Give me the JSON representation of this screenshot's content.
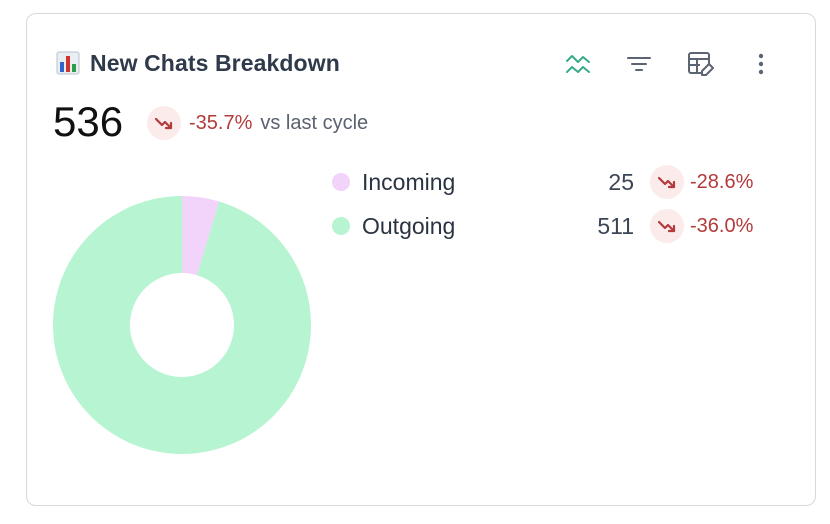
{
  "header": {
    "title": "New Chats Breakdown",
    "icons": [
      "bar-chart-emoji-icon",
      "trend-compare-icon",
      "filter-icon",
      "edit-table-icon",
      "more-vertical-icon"
    ]
  },
  "summary": {
    "total": "536",
    "delta": "-35.7%",
    "delta_suffix": "vs last cycle"
  },
  "legend": [
    {
      "label": "Incoming",
      "count": "25",
      "delta": "-28.6%",
      "color": "#f2d3fa"
    },
    {
      "label": "Outgoing",
      "count": "511",
      "delta": "-36.0%",
      "color": "#b6f4d2"
    }
  ],
  "chart_data": {
    "type": "pie",
    "donut": true,
    "categories": [
      "Incoming",
      "Outgoing"
    ],
    "values": [
      25,
      511
    ],
    "colors": [
      "#f2d3fa",
      "#b6f4d2"
    ]
  },
  "colors": {
    "accent_teal": "#3aa98a",
    "negative": "#b33b3b",
    "negative_bg": "#fcebeb"
  }
}
